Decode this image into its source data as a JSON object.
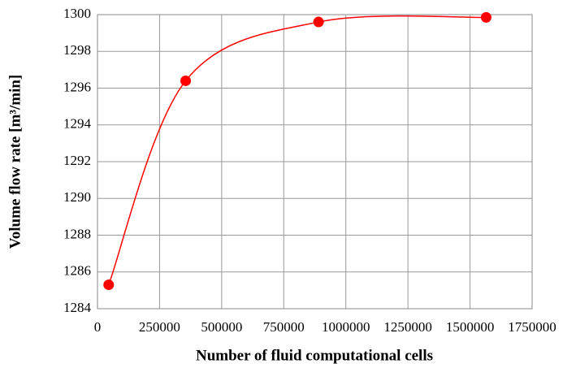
{
  "chart_data": {
    "type": "scatter",
    "xlabel": "Number of fluid computational cells",
    "ylabel": "Volume flow rate [m³/min]",
    "x": [
      45000,
      355000,
      890000,
      1565000
    ],
    "values": [
      1285.3,
      1296.4,
      1299.6,
      1299.85
    ],
    "color": "#ff0000",
    "smooth": true,
    "grid": true,
    "xlim": [
      0,
      1750000
    ],
    "xticks": [
      0,
      250000,
      500000,
      750000,
      1000000,
      1250000,
      1500000,
      1750000
    ],
    "ylim": [
      1284,
      1300
    ],
    "yticks": [
      1284,
      1286,
      1288,
      1290,
      1292,
      1294,
      1296,
      1298,
      1300
    ]
  }
}
